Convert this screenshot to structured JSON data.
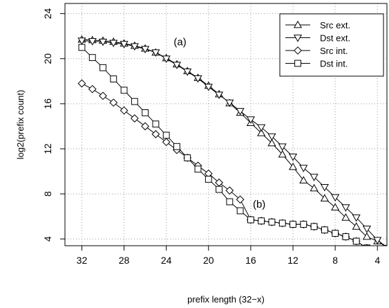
{
  "chart_data": {
    "type": "line",
    "title": "",
    "xlabel": "prefix length (32−x)",
    "ylabel": "log2(prefix count)",
    "xlim": [
      33.6,
      3.1
    ],
    "ylim": [
      3.4,
      24.9
    ],
    "x_reversed": true,
    "xticks": [
      32,
      28,
      24,
      20,
      16,
      12,
      8,
      4
    ],
    "yticks": [
      4,
      8,
      12,
      16,
      20,
      24
    ],
    "grid": true,
    "legend_position": "top-right",
    "annotations": [
      {
        "text": "(a)",
        "x": 22.7,
        "y": 21.5
      },
      {
        "text": "(b)",
        "x": 15.2,
        "y": 7.1
      }
    ],
    "series": [
      {
        "name": "Src ext.",
        "marker": "triangle-up",
        "x": [
          32,
          31,
          30,
          29,
          28,
          27,
          26,
          25,
          24,
          23,
          22,
          21,
          20,
          19,
          18,
          17,
          16,
          15,
          14,
          13,
          12,
          11,
          10,
          9,
          8,
          7,
          6,
          5,
          4,
          3
        ],
        "y": [
          21.7,
          21.65,
          21.6,
          21.5,
          21.35,
          21.15,
          20.9,
          20.55,
          20.05,
          19.5,
          18.9,
          18.3,
          17.6,
          16.85,
          16.05,
          15.2,
          14.3,
          13.4,
          12.5,
          11.5,
          10.4,
          9.2,
          8.5,
          7.6,
          6.8,
          5.9,
          5.1,
          4.2,
          3.8,
          3.2
        ]
      },
      {
        "name": "Dst ext.",
        "marker": "triangle-down",
        "x": [
          32,
          31,
          30,
          29,
          28,
          27,
          26,
          25,
          24,
          23,
          22,
          21,
          20,
          19,
          18,
          17,
          16,
          15,
          14,
          13,
          12,
          11,
          10,
          9,
          8,
          7,
          6,
          5,
          4,
          3
        ],
        "y": [
          21.6,
          21.55,
          21.5,
          21.4,
          21.3,
          21.1,
          20.85,
          20.55,
          20.0,
          19.45,
          18.85,
          18.25,
          17.5,
          16.8,
          16.1,
          15.35,
          14.6,
          13.9,
          13.1,
          12.2,
          11.3,
          10.3,
          9.5,
          8.6,
          7.7,
          6.8,
          5.9,
          4.9,
          3.9,
          3.2
        ]
      },
      {
        "name": "Src int.",
        "marker": "diamond",
        "x": [
          32,
          31,
          30,
          29,
          28,
          27,
          26,
          25,
          24,
          23,
          22,
          21,
          20,
          19,
          18,
          17,
          16,
          15,
          14,
          13,
          12,
          11,
          10,
          9,
          8,
          7,
          6,
          5
        ],
        "y": [
          17.8,
          17.3,
          16.7,
          16.1,
          15.4,
          14.7,
          14.0,
          13.3,
          12.6,
          11.9,
          11.2,
          10.5,
          9.8,
          9.0,
          8.3,
          7.5,
          5.7,
          5.6,
          5.5,
          5.4,
          5.3,
          5.3,
          5.1,
          4.8,
          4.5,
          4.2,
          3.8,
          3.2
        ]
      },
      {
        "name": "Dst int.",
        "marker": "square",
        "x": [
          32,
          31,
          30,
          29,
          28,
          27,
          26,
          25,
          24,
          23,
          22,
          21,
          20,
          19,
          18,
          17,
          16,
          15,
          14,
          13,
          12,
          11,
          10,
          9,
          8,
          7,
          6,
          5
        ],
        "y": [
          21.0,
          20.1,
          19.2,
          18.2,
          17.2,
          16.2,
          15.2,
          14.2,
          13.2,
          12.2,
          11.2,
          10.2,
          9.3,
          8.4,
          7.3,
          6.5,
          5.7,
          5.6,
          5.5,
          5.4,
          5.3,
          5.3,
          5.1,
          4.8,
          4.5,
          4.2,
          3.8,
          3.2
        ]
      }
    ]
  }
}
